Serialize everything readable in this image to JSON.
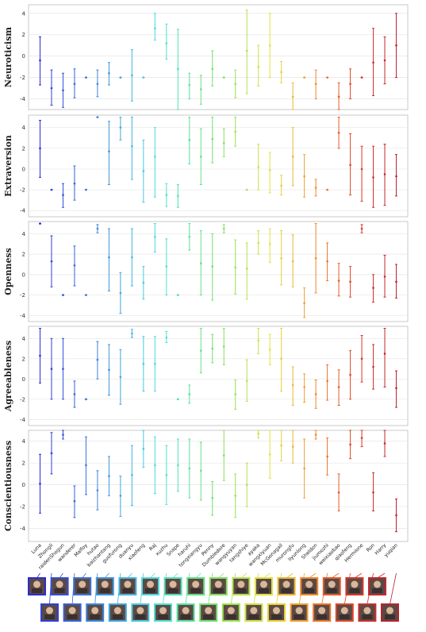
{
  "chart_data": {
    "type": "errorbar",
    "categories": [
      "Luna",
      "Zhongli",
      "raidenShogun",
      "wanderer",
      "Malfoy",
      "hutao",
      "baizhantang",
      "guofurong",
      "duanyu",
      "xiaofeng",
      "Raj",
      "xuzhu",
      "Snape",
      "haruhi",
      "tongxiangyu",
      "Penny",
      "Dumbledore",
      "wangyuyan",
      "tangshiye",
      "ayaka",
      "wangxiyuan",
      "McGonagall",
      "murongfu",
      "liyunlong",
      "Sheldon",
      "jiumozhi",
      "weixiaobao",
      "qiaofeng",
      "Hermione",
      "Ron",
      "Harry",
      "yuqian"
    ],
    "series_colors": [
      "#2b2bd6",
      "#2f3fd8",
      "#3350d9",
      "#3661da",
      "#3972db",
      "#3c83dc",
      "#3f94dd",
      "#42a5de",
      "#45b6df",
      "#48c7e0",
      "#4bd8e0",
      "#4ee0d1",
      "#52e0b8",
      "#58e09f",
      "#62e087",
      "#70e070",
      "#85e060",
      "#9ce055",
      "#b4e04c",
      "#cce044",
      "#e2e03d",
      "#e8cf38",
      "#ebb734",
      "#ee9f30",
      "#f0872c",
      "#ee702a",
      "#e85a2a",
      "#e0462a",
      "#d6372b",
      "#cc2e2c",
      "#c2282d",
      "#b8232e"
    ],
    "panels": [
      {
        "ylabel": "Neuroticism",
        "ylim": [
          -5,
          4.8
        ],
        "yticks": [
          4,
          2,
          0,
          -2,
          -4
        ],
        "data": [
          [
            -0.4,
            -2.7,
            1.8
          ],
          [
            -3.0,
            -4.6,
            -1.3
          ],
          [
            -3.2,
            -4.8,
            -1.6
          ],
          [
            -2.6,
            -3.9,
            -1.2
          ],
          [
            -2.0,
            -2.0,
            -2.0
          ],
          [
            -2.6,
            -3.8,
            -1.3
          ],
          [
            -1.6,
            -2.7,
            -0.6
          ],
          [
            -2.0,
            -2.0,
            -2.0
          ],
          [
            -1.8,
            -4.2,
            0.6
          ],
          [
            -2.0,
            -2.0,
            -2.0
          ],
          [
            2.6,
            1.5,
            4.0
          ],
          [
            1.2,
            -0.3,
            3.0
          ],
          [
            -1.2,
            -5.0,
            2.5
          ],
          [
            -2.7,
            -4.0,
            -1.6
          ],
          [
            -3.1,
            -4.5,
            -1.8
          ],
          [
            -1.2,
            -2.8,
            0.5
          ],
          [
            -2.0,
            -2.0,
            -2.0
          ],
          [
            -2.6,
            -3.9,
            -1.3
          ],
          [
            0.5,
            -3.5,
            4.3
          ],
          [
            -1.0,
            -2.8,
            1.0
          ],
          [
            1.0,
            -2.0,
            4.0
          ],
          [
            -1.5,
            -2.5,
            -0.5
          ],
          [
            -3.8,
            -5.0,
            -2.5
          ],
          [
            -2.0,
            -2.0,
            -2.0
          ],
          [
            -2.6,
            -4.0,
            -1.3
          ],
          [
            -2.0,
            -2.0,
            -2.0
          ],
          [
            -3.8,
            -5.0,
            -2.5
          ],
          [
            -2.6,
            -4.0,
            -1.2
          ],
          [
            -2.0,
            -2.0,
            -2.0
          ],
          [
            -0.6,
            -3.7,
            2.6
          ],
          [
            -0.4,
            -2.6,
            1.8
          ],
          [
            1.0,
            -2.0,
            4.0
          ]
        ]
      },
      {
        "ylabel": "Extraversion",
        "ylim": [
          -4.6,
          5.2
        ],
        "yticks": [
          4,
          2,
          0,
          -2,
          -4
        ],
        "data": [
          [
            2.0,
            -0.8,
            4.7
          ],
          [
            -2.0,
            -2.0,
            -2.0
          ],
          [
            -2.5,
            -3.7,
            -1.4
          ],
          [
            -1.4,
            -3.0,
            0.3
          ],
          [
            -2.0,
            -2.0,
            -2.0
          ],
          [
            5.0,
            5.0,
            5.0
          ],
          [
            1.7,
            -1.5,
            4.6
          ],
          [
            4.0,
            2.8,
            5.0
          ],
          [
            2.2,
            -1.0,
            5.0
          ],
          [
            -0.2,
            -3.2,
            2.8
          ],
          [
            1.2,
            -2.7,
            4.0
          ],
          [
            -2.5,
            -3.6,
            -1.4
          ],
          [
            -2.6,
            -3.7,
            -1.5
          ],
          [
            2.8,
            0.5,
            5.0
          ],
          [
            1.2,
            -1.5,
            3.9
          ],
          [
            2.9,
            0.6,
            5.0
          ],
          [
            2.5,
            1.2,
            3.9
          ],
          [
            3.6,
            2.2,
            5.0
          ],
          [
            -2.0,
            -2.0,
            -2.0
          ],
          [
            0.2,
            -2.0,
            2.4
          ],
          [
            -0.1,
            -2.3,
            1.6
          ],
          [
            -1.6,
            -2.5,
            -0.6
          ],
          [
            1.2,
            -1.6,
            4.0
          ],
          [
            -0.7,
            -2.7,
            1.4
          ],
          [
            -1.8,
            -2.6,
            -1.0
          ],
          [
            -2.0,
            -2.0,
            -2.0
          ],
          [
            3.5,
            2.0,
            5.0
          ],
          [
            0.4,
            -2.5,
            3.4
          ],
          [
            0.0,
            -3.1,
            2.2
          ],
          [
            -0.8,
            -3.7,
            2.2
          ],
          [
            -0.5,
            -3.5,
            2.4
          ],
          [
            -0.7,
            -2.6,
            1.4
          ]
        ]
      },
      {
        "ylabel": "Openness",
        "ylim": [
          -4.6,
          5.2
        ],
        "yticks": [
          4,
          2,
          0,
          -2,
          -4
        ],
        "data": [
          [
            5.0,
            5.0,
            5.0
          ],
          [
            1.3,
            -1.2,
            3.8
          ],
          [
            -2.0,
            -2.0,
            -2.0
          ],
          [
            0.9,
            -1.1,
            2.8
          ],
          [
            -2.0,
            -2.0,
            -2.0
          ],
          [
            4.5,
            4.1,
            4.9
          ],
          [
            1.7,
            -1.6,
            4.5
          ],
          [
            -1.8,
            -3.8,
            0.2
          ],
          [
            1.7,
            -1.1,
            4.5
          ],
          [
            -0.8,
            -2.4,
            0.8
          ],
          [
            3.7,
            2.2,
            5.0
          ],
          [
            0.8,
            -2.0,
            3.5
          ],
          [
            -2.0,
            -2.0,
            -2.0
          ],
          [
            3.7,
            2.4,
            5.0
          ],
          [
            1.1,
            -2.0,
            4.3
          ],
          [
            0.8,
            -2.5,
            4.0
          ],
          [
            4.5,
            4.1,
            4.9
          ],
          [
            0.7,
            -1.9,
            3.4
          ],
          [
            0.6,
            -2.4,
            3.1
          ],
          [
            3.1,
            2.0,
            4.3
          ],
          [
            3.0,
            1.2,
            4.5
          ],
          [
            1.6,
            -1.0,
            4.3
          ],
          [
            1.3,
            -1.2,
            3.9
          ],
          [
            -2.8,
            -4.2,
            -1.3
          ],
          [
            1.6,
            -1.8,
            5.0
          ],
          [
            1.3,
            -0.6,
            3.1
          ],
          [
            -0.6,
            -2.1,
            1.1
          ],
          [
            -0.7,
            -2.2,
            0.8
          ],
          [
            4.5,
            4.1,
            4.9
          ],
          [
            -1.3,
            -2.7,
            0.0
          ],
          [
            -0.2,
            -2.2,
            1.9
          ],
          [
            -0.7,
            -2.3,
            1.0
          ]
        ]
      },
      {
        "ylabel": "Agreeableness",
        "ylim": [
          -4.6,
          5.2
        ],
        "yticks": [
          4,
          2,
          0,
          -2,
          -4
        ],
        "data": [
          [
            2.3,
            -0.4,
            5.0
          ],
          [
            1.0,
            -2.0,
            4.0
          ],
          [
            1.0,
            -2.0,
            4.0
          ],
          [
            -1.5,
            -2.8,
            -0.2
          ],
          [
            -2.0,
            -2.0,
            -2.0
          ],
          [
            1.9,
            0.0,
            3.7
          ],
          [
            0.9,
            -1.6,
            3.4
          ],
          [
            0.2,
            -2.5,
            2.9
          ],
          [
            4.5,
            4.1,
            4.9
          ],
          [
            1.5,
            -1.2,
            4.2
          ],
          [
            1.5,
            -1.2,
            4.2
          ],
          [
            4.1,
            3.6,
            4.7
          ],
          [
            -2.0,
            -2.0,
            -2.0
          ],
          [
            -1.5,
            -2.4,
            -0.6
          ],
          [
            2.8,
            0.6,
            5.0
          ],
          [
            3.0,
            1.6,
            4.4
          ],
          [
            3.2,
            1.4,
            5.0
          ],
          [
            -1.5,
            -3.0,
            -0.1
          ],
          [
            -0.2,
            -2.2,
            1.9
          ],
          [
            3.8,
            2.5,
            5.0
          ],
          [
            2.9,
            1.4,
            4.4
          ],
          [
            2.0,
            -1.2,
            5.0
          ],
          [
            -0.6,
            -2.6,
            1.2
          ],
          [
            -0.8,
            -2.3,
            0.5
          ],
          [
            -1.5,
            -2.9,
            -0.1
          ],
          [
            -0.2,
            -2.1,
            1.4
          ],
          [
            -0.8,
            -2.6,
            0.9
          ],
          [
            0.4,
            -2.0,
            2.8
          ],
          [
            2.0,
            -0.3,
            4.3
          ],
          [
            1.2,
            -1.0,
            3.4
          ],
          [
            2.5,
            -0.8,
            5.0
          ],
          [
            -0.9,
            -2.8,
            0.8
          ]
        ]
      },
      {
        "ylabel": "Conscientiousness",
        "ylim": [
          -5.2,
          5.0
        ],
        "yticks": [
          4,
          2,
          0,
          -2,
          -4
        ],
        "data": [
          [
            0.1,
            -2.6,
            2.8
          ],
          [
            2.9,
            1.0,
            4.8
          ],
          [
            4.6,
            4.2,
            5.0
          ],
          [
            -1.5,
            -3.0,
            -0.1
          ],
          [
            1.8,
            -0.9,
            4.4
          ],
          [
            -0.5,
            -2.3,
            1.3
          ],
          [
            0.8,
            -1.0,
            2.6
          ],
          [
            -1.0,
            -2.9,
            0.8
          ],
          [
            0.9,
            -1.9,
            3.6
          ],
          [
            3.3,
            1.6,
            5.0
          ],
          [
            1.8,
            -0.8,
            4.4
          ],
          [
            0.9,
            -1.8,
            3.6
          ],
          [
            1.8,
            -0.6,
            4.2
          ],
          [
            1.5,
            -1.2,
            4.2
          ],
          [
            1.3,
            -1.4,
            3.9
          ],
          [
            -1.2,
            -2.8,
            0.3
          ],
          [
            2.7,
            0.4,
            5.0
          ],
          [
            -1.0,
            -3.0,
            1.0
          ],
          [
            0.0,
            -2.0,
            2.0
          ],
          [
            4.7,
            4.3,
            5.0
          ],
          [
            2.8,
            0.6,
            5.0
          ],
          [
            3.6,
            2.2,
            5.0
          ],
          [
            3.5,
            2.0,
            5.0
          ],
          [
            1.5,
            -1.2,
            4.2
          ],
          [
            4.6,
            4.2,
            5.0
          ],
          [
            2.6,
            0.9,
            4.3
          ],
          [
            -0.7,
            -2.4,
            1.0
          ],
          [
            3.7,
            2.4,
            5.0
          ],
          [
            4.3,
            3.5,
            5.0
          ],
          [
            -0.7,
            -2.4,
            1.1
          ],
          [
            3.8,
            2.6,
            5.0
          ],
          [
            -2.8,
            -4.3,
            -1.3
          ]
        ]
      }
    ],
    "grid": true
  }
}
